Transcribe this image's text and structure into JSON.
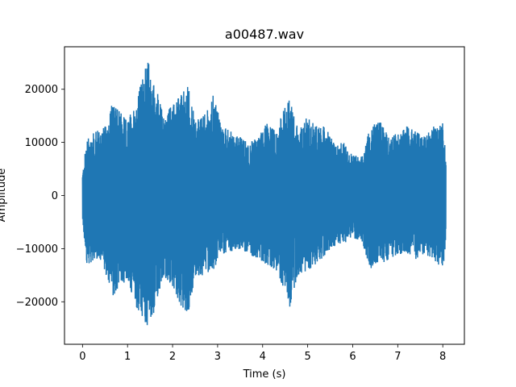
{
  "chart_data": {
    "type": "line",
    "title": "a00487.wav",
    "xlabel": "Time (s)",
    "ylabel": "Amplitude",
    "xlim": [
      -0.4,
      8.48
    ],
    "ylim": [
      -28000,
      28000
    ],
    "x_ticks": [
      0,
      1,
      2,
      3,
      4,
      5,
      6,
      7,
      8
    ],
    "x_tick_labels": [
      "0",
      "1",
      "2",
      "3",
      "4",
      "5",
      "6",
      "7",
      "8"
    ],
    "y_ticks": [
      -20000,
      -10000,
      0,
      10000,
      20000
    ],
    "y_tick_labels": [
      "−20000",
      "−10000",
      "0",
      "10000",
      "20000"
    ],
    "grid": false,
    "line_color": "#1f77b4",
    "series": [
      {
        "x": [
          0,
          0.1,
          0.3,
          0.5,
          0.65,
          0.8,
          1.0,
          1.2,
          1.35,
          1.45,
          1.55,
          1.65,
          1.8,
          2.0,
          2.2,
          2.35,
          2.5,
          2.7,
          2.9,
          3.1,
          3.3,
          3.5,
          3.7,
          3.9,
          4.1,
          4.3,
          4.5,
          4.6,
          4.8,
          5.0,
          5.2,
          5.4,
          5.6,
          5.8,
          6.0,
          6.2,
          6.4,
          6.6,
          6.8,
          7.0,
          7.2,
          7.4,
          7.6,
          7.8,
          8.0,
          8.07
        ],
        "upper": [
          4000,
          11000,
          12000,
          13000,
          17000,
          16000,
          14000,
          18000,
          23000,
          25500,
          22000,
          20000,
          15000,
          17000,
          19000,
          21000,
          14000,
          15000,
          19000,
          13000,
          12000,
          11000,
          10000,
          11000,
          14000,
          12000,
          17000,
          18000,
          12000,
          15000,
          13000,
          13000,
          9500,
          10000,
          7500,
          7500,
          13000,
          14000,
          11000,
          12000,
          13000,
          12000,
          11000,
          13000,
          14000,
          7000
        ],
        "lower": [
          -5000,
          -13000,
          -12000,
          -14000,
          -20000,
          -17000,
          -16000,
          -21000,
          -23000,
          -25000,
          -23000,
          -20000,
          -15000,
          -17000,
          -21000,
          -22000,
          -15000,
          -15000,
          -14000,
          -11000,
          -10500,
          -10000,
          -11000,
          -12000,
          -13000,
          -14000,
          -18000,
          -21000,
          -15000,
          -14000,
          -13000,
          -11000,
          -9500,
          -9000,
          -8000,
          -8500,
          -14000,
          -13000,
          -12000,
          -11000,
          -11000,
          -12000,
          -11000,
          -12000,
          -14000,
          -9000
        ]
      }
    ]
  }
}
